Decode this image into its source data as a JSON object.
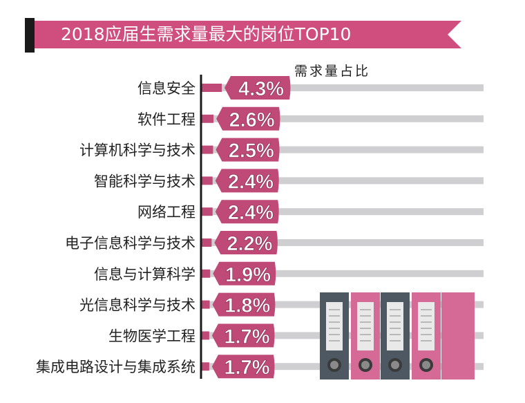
{
  "title": "2018应届生需求量最大的岗位TOP10",
  "colors": {
    "banner": "#cf4e7d",
    "banner_dark": "#1a1a1a",
    "badge": "#c04a77",
    "track": "#cfcfd1",
    "binder_gray": "#4e5863",
    "binder_pink": "#d66a97"
  },
  "chart_data": {
    "type": "bar",
    "orientation": "horizontal",
    "title": "2018应届生需求量最大的岗位TOP10",
    "subtitle": "需求量占比",
    "unit": "%",
    "categories": [
      "信息安全",
      "软件工程",
      "计算机科学与技术",
      "智能科学与技术",
      "网络工程",
      "电子信息科学与技术",
      "信息与计算科学",
      "光信息科学与技术",
      "生物医学工程",
      "集成电路设计与集成系统"
    ],
    "values": [
      4.3,
      2.6,
      2.5,
      2.4,
      2.4,
      2.2,
      1.9,
      1.8,
      1.7,
      1.7
    ],
    "value_labels": [
      "4.3%",
      "2.6%",
      "2.5%",
      "2.4%",
      "2.4%",
      "2.2%",
      "1.9%",
      "1.8%",
      "1.7%",
      "1.7%"
    ]
  }
}
